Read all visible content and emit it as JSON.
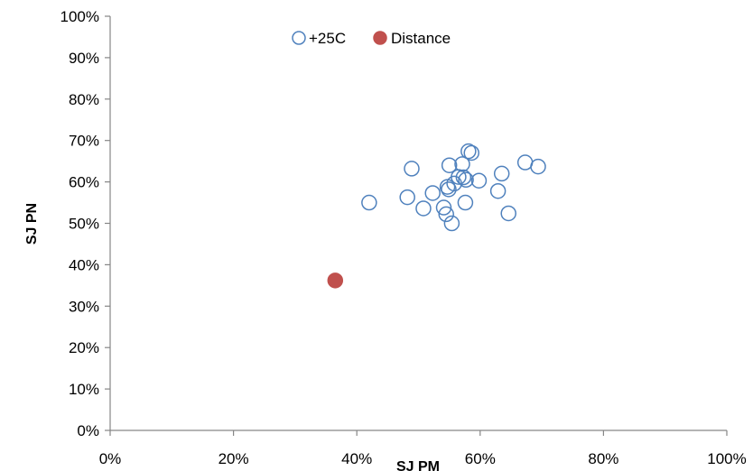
{
  "chart_data": {
    "type": "scatter",
    "title": "",
    "xlabel": "SJ PM",
    "ylabel": "SJ PN",
    "xlim": [
      0,
      100
    ],
    "ylim": [
      0,
      100
    ],
    "x_ticks": [
      "0%",
      "20%",
      "40%",
      "60%",
      "80%",
      "100%"
    ],
    "y_ticks": [
      "0%",
      "10%",
      "20%",
      "30%",
      "40%",
      "50%",
      "60%",
      "70%",
      "80%",
      "90%",
      "100%"
    ],
    "grid": false,
    "legend_position": "top",
    "series": [
      {
        "name": "+25C",
        "marker": "hollow-circle",
        "color": "#4F81BD",
        "points": [
          {
            "x": 42.0,
            "y": 55.0
          },
          {
            "x": 48.2,
            "y": 56.3
          },
          {
            "x": 48.9,
            "y": 63.2
          },
          {
            "x": 50.8,
            "y": 53.6
          },
          {
            "x": 52.3,
            "y": 57.3
          },
          {
            "x": 54.1,
            "y": 53.8
          },
          {
            "x": 54.5,
            "y": 52.2
          },
          {
            "x": 54.7,
            "y": 58.8
          },
          {
            "x": 54.9,
            "y": 58.2
          },
          {
            "x": 55.0,
            "y": 64.0
          },
          {
            "x": 55.4,
            "y": 50.0
          },
          {
            "x": 55.8,
            "y": 59.6
          },
          {
            "x": 56.5,
            "y": 61.2
          },
          {
            "x": 57.1,
            "y": 64.3
          },
          {
            "x": 57.3,
            "y": 61.1
          },
          {
            "x": 57.6,
            "y": 55.0
          },
          {
            "x": 57.7,
            "y": 60.5
          },
          {
            "x": 58.1,
            "y": 67.4
          },
          {
            "x": 58.6,
            "y": 67.0
          },
          {
            "x": 59.8,
            "y": 60.3
          },
          {
            "x": 62.9,
            "y": 57.8
          },
          {
            "x": 63.5,
            "y": 62.0
          },
          {
            "x": 64.6,
            "y": 52.4
          },
          {
            "x": 67.3,
            "y": 64.7
          },
          {
            "x": 69.4,
            "y": 63.7
          }
        ]
      },
      {
        "name": "Distance",
        "marker": "filled-circle",
        "color": "#C0504D",
        "points": [
          {
            "x": 36.5,
            "y": 36.2
          }
        ]
      }
    ]
  }
}
